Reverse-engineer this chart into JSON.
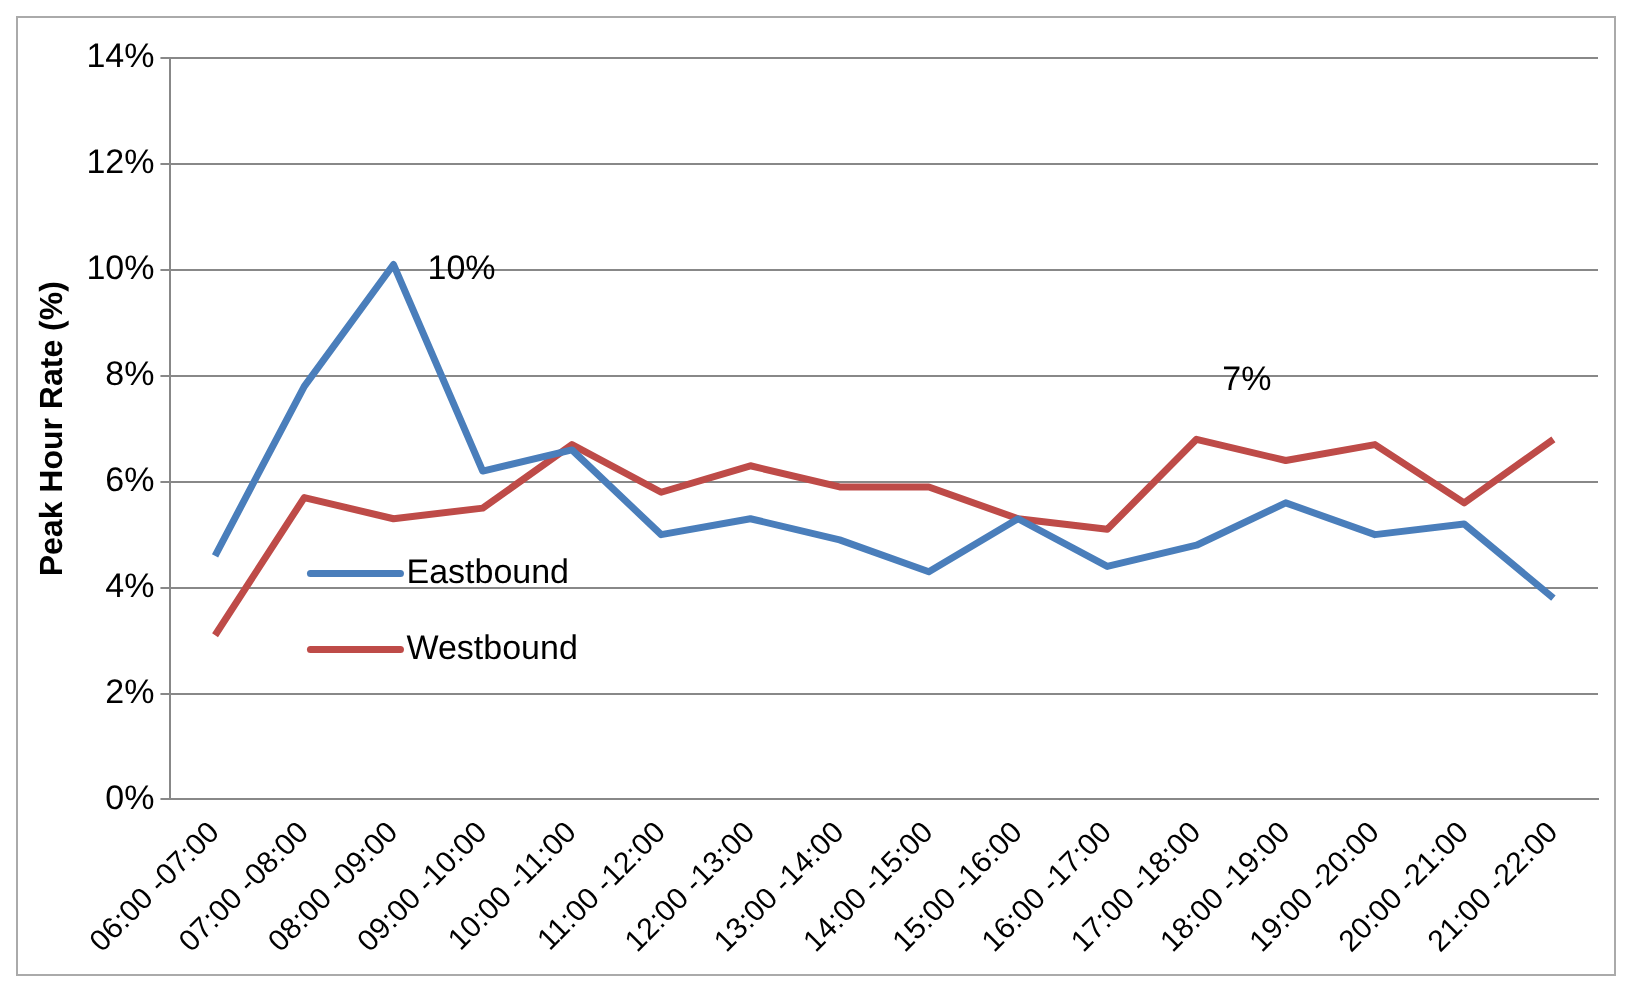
{
  "chart_data": {
    "type": "line",
    "ylabel": "Peak Hour Rate (%)",
    "categories": [
      "06:00 -07:00",
      "07:00 -08:00",
      "08:00 -09:00",
      "09:00 -10:00",
      "10:00 -11:00",
      "11:00 -12:00",
      "12:00 -13:00",
      "13:00 -14:00",
      "14:00 -15:00",
      "15:00 -16:00",
      "16:00 -17:00",
      "17:00 -18:00",
      "18:00 -19:00",
      "19:00 -20:00",
      "20:00 -21:00",
      "21:00 -22:00"
    ],
    "series": [
      {
        "name": "Eastbound",
        "color": "#4a7ebb",
        "values": [
          4.6,
          7.8,
          10.1,
          6.2,
          6.6,
          5.0,
          5.3,
          4.9,
          4.3,
          5.3,
          4.4,
          4.8,
          5.6,
          5.0,
          5.2,
          3.8
        ]
      },
      {
        "name": "Westbound",
        "color": "#be4b48",
        "values": [
          3.1,
          5.7,
          5.3,
          5.5,
          6.7,
          5.8,
          6.3,
          5.9,
          5.9,
          5.3,
          5.1,
          6.8,
          6.4,
          6.7,
          5.6,
          6.8
        ]
      }
    ],
    "ylim": [
      0,
      14
    ],
    "yticks": [
      {
        "value": 0,
        "label": "0%"
      },
      {
        "value": 2,
        "label": "2%"
      },
      {
        "value": 4,
        "label": "4%"
      },
      {
        "value": 6,
        "label": "6%"
      },
      {
        "value": 8,
        "label": "8%"
      },
      {
        "value": 10,
        "label": "10%"
      },
      {
        "value": 12,
        "label": "12%"
      },
      {
        "value": 14,
        "label": "14%"
      }
    ],
    "annotations": [
      {
        "text": "10%",
        "x": "08:00 -09:00",
        "y": 10
      },
      "7%"
    ],
    "grid": "y",
    "legend": "bottom left",
    "marker": "none",
    "line_style": "solid"
  }
}
